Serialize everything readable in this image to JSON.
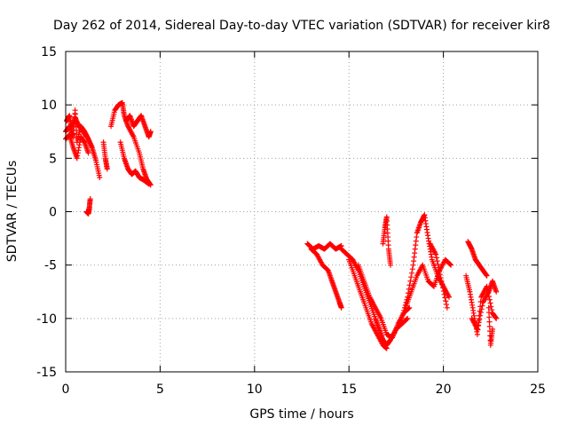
{
  "chart_data": {
    "type": "scatter",
    "title": "Day 262 of 2014, Sidereal Day-to-day VTEC variation (SDTVAR) for receiver kir8",
    "xlabel": "GPS time / hours",
    "ylabel": "SDTVAR / TECUs",
    "xlim": [
      0,
      25
    ],
    "ylim": [
      -15,
      15
    ],
    "xticks": [
      0,
      5,
      10,
      15,
      20,
      25
    ],
    "xtick_labels": [
      "0",
      "5",
      "10",
      "15",
      "20",
      "25"
    ],
    "yticks": [
      -15,
      -10,
      -5,
      0,
      5,
      10,
      15
    ],
    "ytick_labels": [
      "-15",
      "-10",
      "-5",
      "0",
      "5",
      "10",
      "15"
    ],
    "grid": true,
    "marker": "+",
    "series": [
      {
        "name": "SDTVAR",
        "color": "#ff0000",
        "segments": [
          {
            "x": [
              0.0,
              0.2,
              0.4,
              0.5,
              0.6,
              0.8,
              1.0,
              1.2,
              1.4,
              1.6,
              1.8
            ],
            "y": [
              7.5,
              8.0,
              7.0,
              9.5,
              6.5,
              8.0,
              7.5,
              6.8,
              6.0,
              4.8,
              3.2
            ]
          },
          {
            "x": [
              0.0,
              0.2,
              0.4,
              0.6,
              0.8,
              1.0,
              1.2
            ],
            "y": [
              6.8,
              7.2,
              6.0,
              5.0,
              7.0,
              6.5,
              5.5
            ]
          },
          {
            "x": [
              0.05,
              0.2,
              0.3,
              0.5,
              0.7,
              0.9,
              1.1
            ],
            "y": [
              8.5,
              9.0,
              7.8,
              8.8,
              8.0,
              7.6,
              7.0
            ]
          },
          {
            "x": [
              1.1,
              1.2,
              1.25,
              1.3
            ],
            "y": [
              0.0,
              -0.2,
              0.3,
              1.2
            ]
          },
          {
            "x": [
              2.0,
              2.1,
              2.2
            ],
            "y": [
              6.5,
              5.0,
              4.0
            ]
          },
          {
            "x": [
              2.4,
              2.6,
              2.8,
              3.0,
              3.1,
              3.3,
              3.6,
              3.9,
              4.1,
              4.3,
              4.5
            ],
            "y": [
              8.0,
              9.5,
              10.0,
              10.2,
              9.0,
              8.0,
              7.0,
              5.5,
              4.0,
              3.0,
              2.5
            ]
          },
          {
            "x": [
              2.9,
              3.1,
              3.3,
              3.5,
              3.7,
              3.9,
              4.1,
              4.4
            ],
            "y": [
              6.5,
              5.0,
              4.0,
              3.5,
              3.8,
              3.2,
              3.0,
              2.6
            ]
          },
          {
            "x": [
              3.2,
              3.4,
              3.6,
              3.8,
              4.0,
              4.2,
              4.4,
              4.5
            ],
            "y": [
              8.5,
              9.0,
              8.0,
              8.5,
              9.0,
              8.0,
              7.0,
              7.5
            ]
          },
          {
            "x": [
              12.8,
              13.1,
              13.4,
              13.7,
              14.0,
              14.3,
              14.6
            ],
            "y": [
              -3.0,
              -3.5,
              -3.2,
              -3.5,
              -3.0,
              -3.5,
              -3.2
            ]
          },
          {
            "x": [
              13.0,
              13.3,
              13.6,
              13.9,
              14.1,
              14.3,
              14.5,
              14.6
            ],
            "y": [
              -3.5,
              -4.0,
              -5.0,
              -5.5,
              -6.5,
              -7.5,
              -8.5,
              -9.0
            ]
          },
          {
            "x": [
              14.6,
              14.9,
              15.2,
              15.5,
              15.8,
              16.1,
              16.4,
              16.6,
              16.8,
              17.0,
              17.2,
              17.5,
              17.8,
              18.1
            ],
            "y": [
              -3.5,
              -4.0,
              -4.5,
              -5.5,
              -7.0,
              -8.5,
              -10.0,
              -11.0,
              -12.0,
              -12.5,
              -12.0,
              -11.0,
              -10.5,
              -10.0
            ]
          },
          {
            "x": [
              15.0,
              15.3,
              15.6,
              15.9,
              16.2,
              16.5,
              16.8,
              17.0
            ],
            "y": [
              -4.5,
              -6.0,
              -7.5,
              -9.0,
              -10.5,
              -11.5,
              -12.5,
              -12.8
            ]
          },
          {
            "x": [
              15.5,
              15.8,
              16.1,
              16.4,
              16.7,
              17.0,
              17.3,
              17.6,
              17.9,
              18.2
            ],
            "y": [
              -5.0,
              -6.5,
              -8.0,
              -9.0,
              -10.0,
              -11.5,
              -11.8,
              -10.5,
              -9.5,
              -9.0
            ]
          },
          {
            "x": [
              16.8,
              16.9,
              17.0,
              17.1,
              17.2
            ],
            "y": [
              -3.0,
              -1.5,
              -0.5,
              -3.5,
              -5.0
            ]
          },
          {
            "x": [
              17.8,
              18.1,
              18.4,
              18.6,
              18.8,
              19.0,
              19.2,
              19.4,
              19.7,
              20.0,
              20.3
            ],
            "y": [
              -10.0,
              -8.0,
              -5.0,
              -2.0,
              -1.0,
              -0.3,
              -2.5,
              -4.5,
              -6.0,
              -7.0,
              -8.0
            ]
          },
          {
            "x": [
              18.0,
              18.3,
              18.6,
              18.9,
              19.2,
              19.5,
              19.8,
              20.1,
              20.4
            ],
            "y": [
              -9.0,
              -7.5,
              -6.0,
              -5.0,
              -6.5,
              -7.0,
              -5.5,
              -4.5,
              -5.0
            ]
          },
          {
            "x": [
              19.3,
              19.6,
              19.9,
              20.2
            ],
            "y": [
              -3.0,
              -4.0,
              -6.5,
              -9.0
            ]
          },
          {
            "x": [
              21.3,
              21.5,
              21.7,
              21.9,
              22.1,
              22.3
            ],
            "y": [
              -2.8,
              -3.5,
              -4.5,
              -5.0,
              -5.5,
              -6.0
            ]
          },
          {
            "x": [
              21.2,
              21.4,
              21.6,
              21.8,
              22.0,
              22.3,
              22.6,
              22.8
            ],
            "y": [
              -6.0,
              -7.5,
              -9.5,
              -11.5,
              -8.0,
              -7.0,
              -9.5,
              -10.0
            ]
          },
          {
            "x": [
              21.5,
              21.8,
              22.1,
              22.4,
              22.6,
              22.8
            ],
            "y": [
              -10.0,
              -11.0,
              -8.5,
              -7.5,
              -6.5,
              -7.5
            ]
          },
          {
            "x": [
              22.4,
              22.5,
              22.6
            ],
            "y": [
              -9.0,
              -12.5,
              -11.0
            ]
          }
        ]
      }
    ]
  }
}
